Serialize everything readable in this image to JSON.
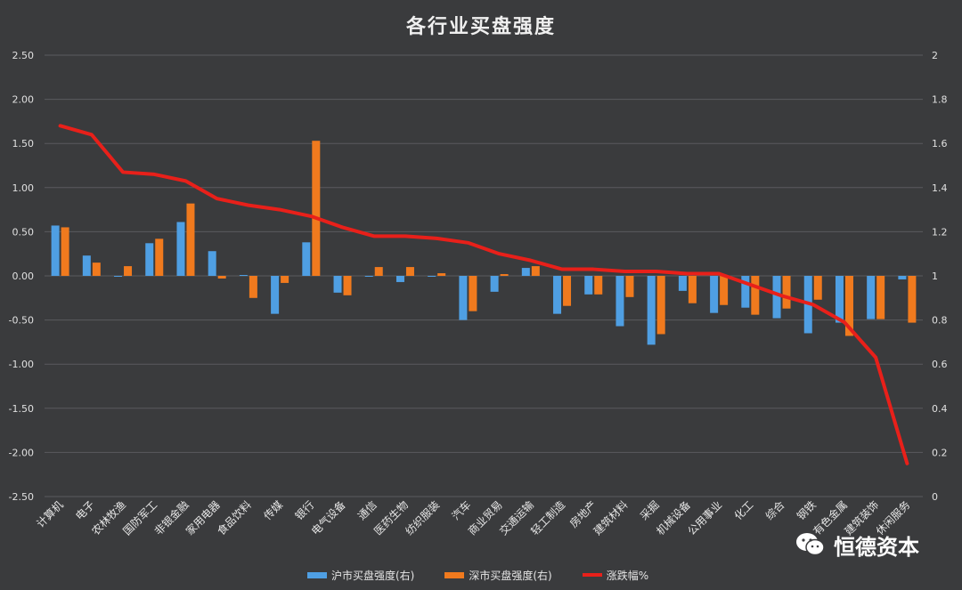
{
  "chart_data": {
    "type": "bar",
    "title": "各行业买盘强度",
    "categories": [
      "计算机",
      "电子",
      "农林牧渔",
      "国防军工",
      "非银金融",
      "家用电器",
      "食品饮料",
      "传媒",
      "银行",
      "电气设备",
      "通信",
      "医药生物",
      "纺织服装",
      "汽车",
      "商业贸易",
      "交通运输",
      "轻工制造",
      "房地产",
      "建筑材料",
      "采掘",
      "机械设备",
      "公用事业",
      "化工",
      "综合",
      "钢铁",
      "有色金属",
      "建筑装饰",
      "休闲服务"
    ],
    "series": [
      {
        "name": "沪市买盘强度(右)",
        "axis": "left",
        "color": "#4f9fe3",
        "values": [
          0.57,
          0.23,
          0.0,
          0.37,
          0.61,
          0.28,
          0.01,
          -0.43,
          0.38,
          -0.19,
          0.0,
          -0.07,
          0.0,
          -0.5,
          -0.18,
          0.09,
          -0.43,
          -0.21,
          -0.57,
          -0.78,
          -0.17,
          -0.42,
          -0.36,
          -0.48,
          -0.65,
          -0.53,
          -0.49,
          -0.04
        ]
      },
      {
        "name": "深市买盘强度(右)",
        "axis": "left",
        "color": "#f07a1e",
        "values": [
          0.55,
          0.15,
          0.11,
          0.42,
          0.82,
          -0.03,
          -0.25,
          -0.08,
          1.53,
          -0.22,
          0.1,
          0.1,
          0.03,
          -0.4,
          0.02,
          0.11,
          -0.34,
          -0.21,
          -0.24,
          -0.66,
          -0.31,
          -0.33,
          -0.44,
          -0.37,
          -0.27,
          -0.68,
          -0.49,
          -0.53
        ]
      },
      {
        "name": "涨跌幅%",
        "axis": "right",
        "type": "line",
        "color": "#e8201a",
        "values": [
          1.68,
          1.64,
          1.47,
          1.46,
          1.43,
          1.35,
          1.32,
          1.3,
          1.27,
          1.22,
          1.18,
          1.18,
          1.17,
          1.15,
          1.1,
          1.07,
          1.03,
          1.03,
          1.02,
          1.02,
          1.01,
          1.01,
          0.96,
          0.91,
          0.87,
          0.79,
          0.63,
          0.15
        ]
      }
    ],
    "yaxis_left": {
      "min": -2.5,
      "max": 2.5,
      "ticks": [
        "2.50",
        "2.00",
        "1.50",
        "1.00",
        "0.50",
        "0.00",
        "-0.50",
        "-1.00",
        "-1.50",
        "-2.00",
        "-2.50"
      ]
    },
    "yaxis_right": {
      "min": 0,
      "max": 2,
      "ticks": [
        "2",
        "1.8",
        "1.6",
        "1.4",
        "1.2",
        "1",
        "0.8",
        "0.6",
        "0.4",
        "0.2",
        "0"
      ]
    },
    "grid": true,
    "legend": "bottom"
  },
  "watermark": {
    "text": "恒德资本",
    "icon": "wechat-icon"
  }
}
